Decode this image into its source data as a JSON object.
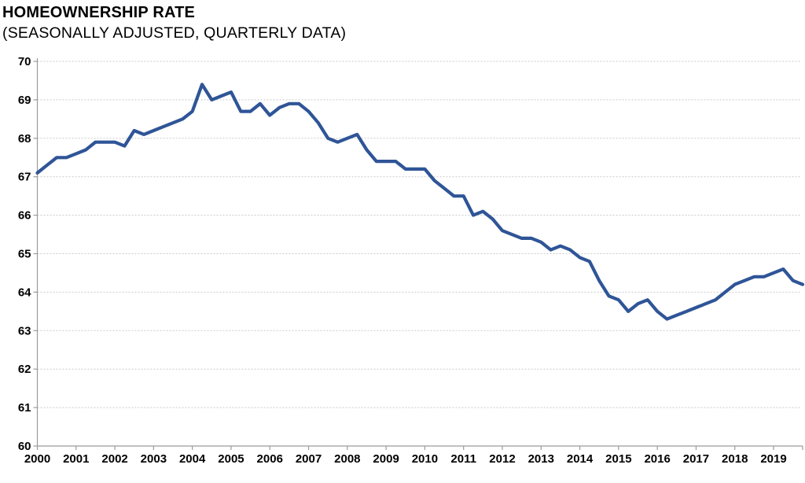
{
  "header": {
    "title": "HOMEOWNERSHIP RATE",
    "subtitle": "(SEASONALLY ADJUSTED, QUARTERLY DATA)"
  },
  "chart_data": {
    "type": "line",
    "title": "HOMEOWNERSHIP RATE",
    "subtitle": "(SEASONALLY ADJUSTED, QUARTERLY DATA)",
    "frequency": "quarterly",
    "legend": "none",
    "grid": "horizontal-dotted",
    "ylim": [
      60,
      70
    ],
    "ytick_step": 1,
    "ytick_labels": [
      "70",
      "69",
      "68",
      "67",
      "66",
      "65",
      "64",
      "63",
      "62",
      "61",
      "60"
    ],
    "xtick_labels": [
      "2000",
      "2001",
      "2002",
      "2003",
      "2004",
      "2005",
      "2006",
      "2007",
      "2008",
      "2009",
      "2010",
      "2011",
      "2012",
      "2013",
      "2014",
      "2015",
      "2016",
      "2017",
      "2018",
      "2019"
    ],
    "categories": [
      "2000 Q1",
      "2000 Q2",
      "2000 Q3",
      "2000 Q4",
      "2001 Q1",
      "2001 Q2",
      "2001 Q3",
      "2001 Q4",
      "2002 Q1",
      "2002 Q2",
      "2002 Q3",
      "2002 Q4",
      "2003 Q1",
      "2003 Q2",
      "2003 Q3",
      "2003 Q4",
      "2004 Q1",
      "2004 Q2",
      "2004 Q3",
      "2004 Q4",
      "2005 Q1",
      "2005 Q2",
      "2005 Q3",
      "2005 Q4",
      "2006 Q1",
      "2006 Q2",
      "2006 Q3",
      "2006 Q4",
      "2007 Q1",
      "2007 Q2",
      "2007 Q3",
      "2007 Q4",
      "2008 Q1",
      "2008 Q2",
      "2008 Q3",
      "2008 Q4",
      "2009 Q1",
      "2009 Q2",
      "2009 Q3",
      "2009 Q4",
      "2010 Q1",
      "2010 Q2",
      "2010 Q3",
      "2010 Q4",
      "2011 Q1",
      "2011 Q2",
      "2011 Q3",
      "2011 Q4",
      "2012 Q1",
      "2012 Q2",
      "2012 Q3",
      "2012 Q4",
      "2013 Q1",
      "2013 Q2",
      "2013 Q3",
      "2013 Q4",
      "2014 Q1",
      "2014 Q2",
      "2014 Q3",
      "2014 Q4",
      "2015 Q1",
      "2015 Q2",
      "2015 Q3",
      "2015 Q4",
      "2016 Q1",
      "2016 Q2",
      "2016 Q3",
      "2016 Q4",
      "2017 Q1",
      "2017 Q2",
      "2017 Q3",
      "2017 Q4",
      "2018 Q1",
      "2018 Q2",
      "2018 Q3",
      "2018 Q4",
      "2019 Q1",
      "2019 Q2",
      "2019 Q3",
      "2019 Q4"
    ],
    "values": [
      67.1,
      67.3,
      67.5,
      67.5,
      67.6,
      67.7,
      67.9,
      67.9,
      67.9,
      67.8,
      68.2,
      68.1,
      68.2,
      68.3,
      68.4,
      68.5,
      68.7,
      69.4,
      69.0,
      69.1,
      69.2,
      68.7,
      68.7,
      68.9,
      68.6,
      68.8,
      68.9,
      68.9,
      68.7,
      68.4,
      68.0,
      67.9,
      68.0,
      68.1,
      67.7,
      67.4,
      67.4,
      67.4,
      67.2,
      67.2,
      67.2,
      66.9,
      66.7,
      66.5,
      66.5,
      66.0,
      66.1,
      65.9,
      65.6,
      65.5,
      65.4,
      65.4,
      65.3,
      65.1,
      65.2,
      65.1,
      64.9,
      64.8,
      64.3,
      63.9,
      63.8,
      63.5,
      63.7,
      63.8,
      63.5,
      63.3,
      63.4,
      63.5,
      63.6,
      63.7,
      63.8,
      64.0,
      64.2,
      64.3,
      64.4,
      64.4,
      64.5,
      64.6,
      64.3,
      64.2
    ],
    "line_color": "#2f5597",
    "axis_color": "#9b9b9b",
    "grid_color": "#c9c9c9",
    "text_color": "#000000"
  }
}
